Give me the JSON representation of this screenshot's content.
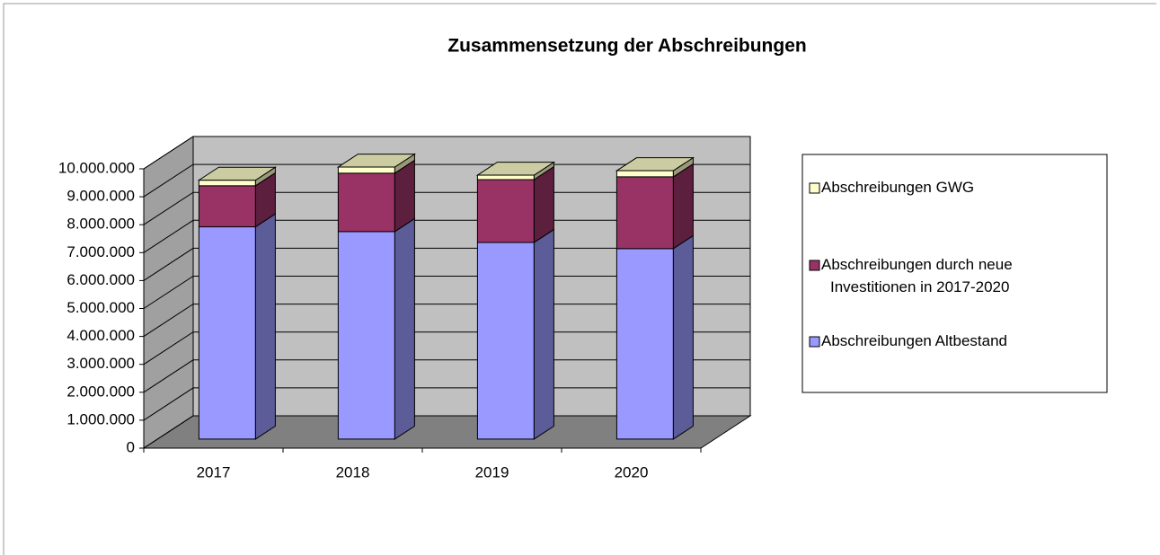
{
  "chart_data": {
    "type": "bar3d_stacked",
    "title": "Zusammensetzung der Abschreibungen",
    "categories": [
      "2017",
      "2018",
      "2019",
      "2020"
    ],
    "series": [
      {
        "name": "Abschreibungen Altbestand",
        "color": "#9999ff",
        "values": [
          7600000,
          7430000,
          7040000,
          6820000
        ]
      },
      {
        "name": "Abschreibungen durch neue Investitionen in 2017-2020",
        "color": "#993366",
        "values": [
          1470000,
          2090000,
          2250000,
          2570000
        ]
      },
      {
        "name": "Abschreibungen GWG",
        "color": "#ffffcc",
        "values": [
          200000,
          220000,
          160000,
          220000
        ]
      }
    ],
    "ylim": [
      0,
      10000000
    ],
    "yticks": [
      0,
      {
        "value": 1000000,
        "label": "1.000.000"
      },
      {
        "value": 2000000,
        "label": "2.000.000"
      },
      {
        "value": 3000000,
        "label": "3.000.000"
      },
      {
        "value": 4000000,
        "label": "4.000.000"
      },
      {
        "value": 5000000,
        "label": "5.000.000"
      },
      {
        "value": 6000000,
        "label": "6.000.000"
      },
      {
        "value": 7000000,
        "label": "7.000.000"
      },
      {
        "value": 8000000,
        "label": "8.000.000"
      },
      {
        "value": 9000000,
        "label": "9.000.000"
      },
      {
        "value": 10000000,
        "label": "10.000.000"
      }
    ],
    "grid": true,
    "legend": "right"
  }
}
